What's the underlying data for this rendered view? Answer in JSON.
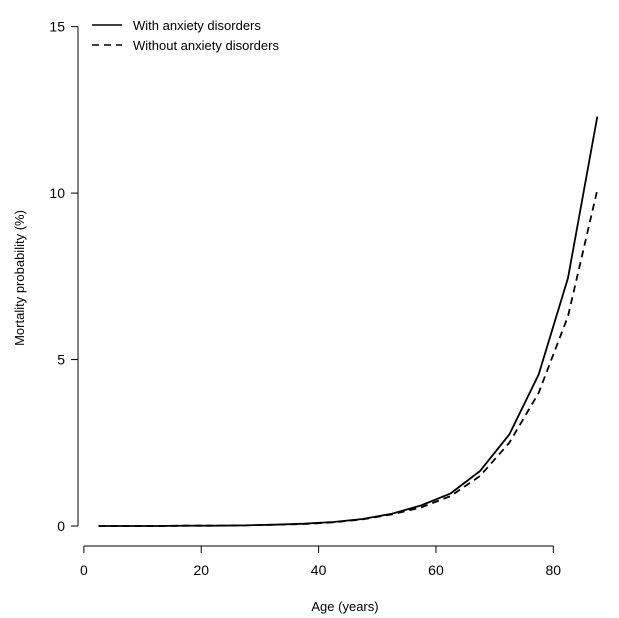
{
  "chart_data": {
    "type": "line",
    "title": "",
    "xlabel": "Age (years)",
    "ylabel": "Mortality probability (%)",
    "xlim": [
      -1,
      90
    ],
    "ylim": [
      -0.6,
      15.5
    ],
    "xticks": [
      0,
      20,
      40,
      60,
      80
    ],
    "yticks": [
      0,
      5,
      10,
      15
    ],
    "legend_position": "top-left",
    "grid": false,
    "x": [
      2.5,
      7.5,
      12.5,
      17.5,
      22.5,
      27.5,
      32.5,
      37.5,
      42.5,
      47.5,
      52.5,
      57.5,
      62.5,
      67.5,
      72.5,
      77.5,
      82.5,
      87.5
    ],
    "series": [
      {
        "name": "With anxiety disorders",
        "style": "solid",
        "values": [
          0.0,
          0.0,
          0.0,
          0.01,
          0.01,
          0.02,
          0.04,
          0.07,
          0.12,
          0.21,
          0.37,
          0.62,
          0.98,
          1.65,
          2.75,
          4.55,
          7.45,
          12.3
        ]
      },
      {
        "name": "Without anxiety disorders",
        "style": "dashed",
        "values": [
          0.0,
          0.0,
          0.0,
          0.01,
          0.01,
          0.02,
          0.04,
          0.06,
          0.11,
          0.2,
          0.35,
          0.56,
          0.9,
          1.5,
          2.5,
          4.0,
          6.3,
          10.1
        ]
      }
    ]
  }
}
